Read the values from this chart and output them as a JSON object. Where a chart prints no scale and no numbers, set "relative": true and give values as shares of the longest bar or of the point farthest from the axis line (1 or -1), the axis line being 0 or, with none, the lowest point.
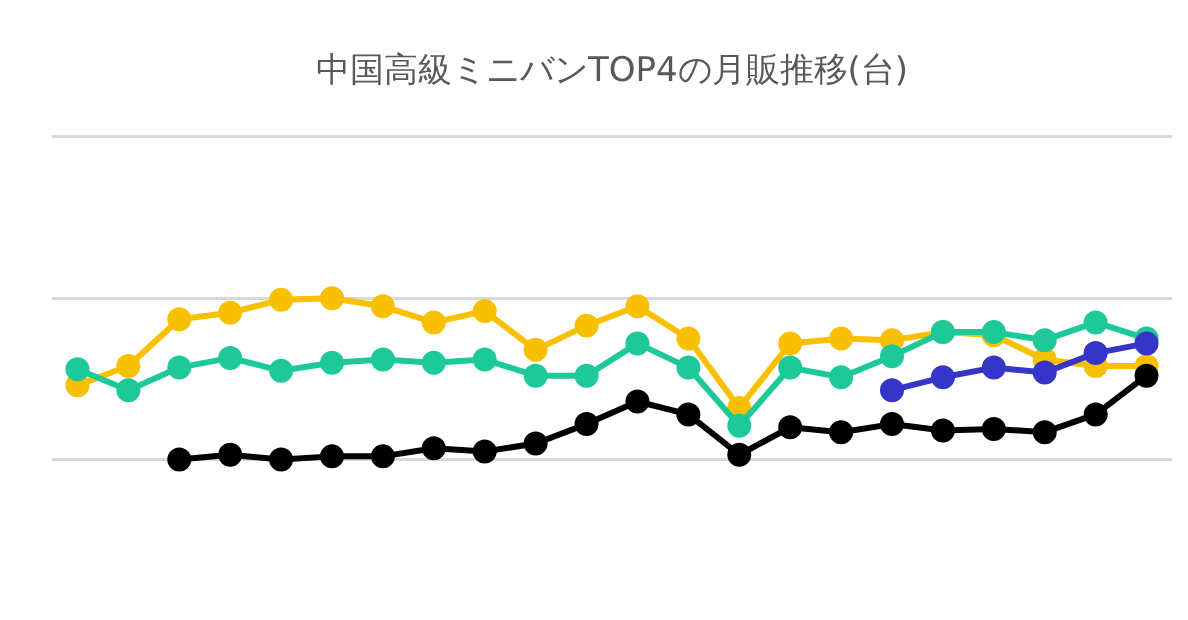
{
  "chart_data": {
    "type": "line",
    "title": "中国高級ミニバンTOP4の月販推移(台)",
    "relative": true,
    "grid": "y",
    "marker": "circle",
    "line_style": "solid",
    "categories": [
      null,
      null,
      null,
      null,
      null,
      null,
      null,
      null,
      null,
      null,
      null,
      null,
      null,
      null,
      null,
      null,
      null,
      null,
      null,
      null,
      null,
      null
    ],
    "series": [
      {
        "color": "#f9c000",
        "values": [
          0.46,
          0.58,
          0.87,
          0.91,
          0.99,
          1.0,
          0.95,
          0.85,
          0.92,
          0.68,
          0.83,
          0.95,
          0.75,
          0.32,
          0.72,
          0.75,
          0.74,
          0.79,
          0.77,
          0.62,
          0.58,
          0.58
        ]
      },
      {
        "color": "#1ec999",
        "values": [
          0.56,
          0.43,
          0.57,
          0.63,
          0.55,
          0.6,
          0.62,
          0.6,
          0.62,
          0.52,
          0.52,
          0.72,
          0.57,
          0.21,
          0.57,
          0.51,
          0.64,
          0.79,
          0.79,
          0.74,
          0.85,
          0.75
        ]
      },
      {
        "color": "#3535c8",
        "values": [
          null,
          null,
          null,
          null,
          null,
          null,
          null,
          null,
          null,
          null,
          null,
          null,
          null,
          null,
          null,
          null,
          0.43,
          0.51,
          0.57,
          0.54,
          0.66,
          0.72
        ]
      },
      {
        "color": "#000000",
        "values": [
          null,
          null,
          0.0,
          0.03,
          0.0,
          0.02,
          0.02,
          0.07,
          0.05,
          0.1,
          0.22,
          0.36,
          0.28,
          0.03,
          0.2,
          0.17,
          0.22,
          0.18,
          0.19,
          0.17,
          0.28,
          0.52
        ]
      }
    ]
  }
}
